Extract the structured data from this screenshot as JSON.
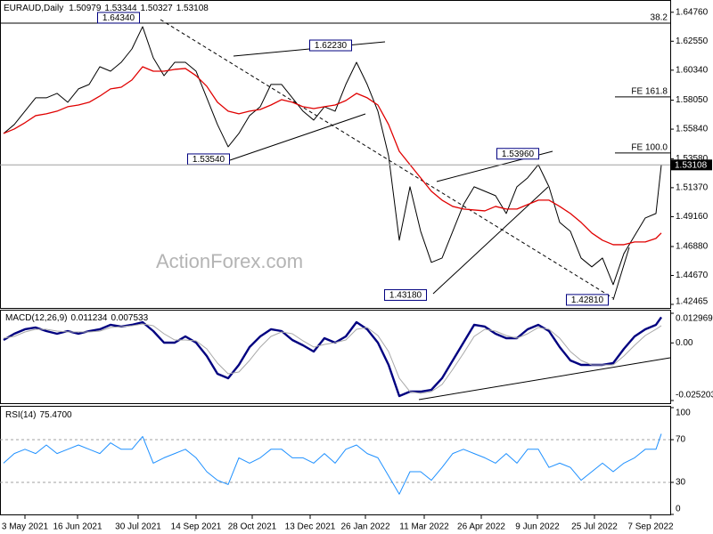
{
  "chart_data": [
    {
      "type": "line",
      "title": "EURAUD,Daily",
      "ohlc": [
        1.50979,
        1.53344,
        1.50327,
        1.53108
      ],
      "watermark": "ActionForex.com",
      "xlim": [
        -2,
        374
      ],
      "ylim": [
        1.4226,
        1.6556
      ],
      "yticks": [
        {
          "value": 1.6476,
          "label": "1.64760"
        },
        {
          "value": 1.6255,
          "label": "1.62550"
        },
        {
          "value": 1.6034,
          "label": "1.60340"
        },
        {
          "value": 1.5805,
          "label": "1.58050"
        },
        {
          "value": 1.5584,
          "label": "1.55840"
        },
        {
          "value": 1.5358,
          "label": "1.53580"
        },
        {
          "value": 1.5137,
          "label": "1.51370"
        },
        {
          "value": 1.4916,
          "label": "1.49160"
        },
        {
          "value": 1.4688,
          "label": "1.46880"
        },
        {
          "value": 1.4467,
          "label": "1.44670"
        },
        1.42465
      ],
      "x": [
        0,
        6,
        12,
        18,
        24,
        30,
        36,
        42,
        48,
        54,
        60,
        66,
        72,
        78,
        84,
        90,
        96,
        102,
        108,
        114,
        120,
        126,
        132,
        138,
        144,
        150,
        156,
        162,
        168,
        174,
        180,
        186,
        192,
        198,
        204,
        210,
        216,
        222,
        228,
        234,
        240,
        246,
        252,
        258,
        264,
        270,
        276,
        282,
        288,
        294,
        300,
        306,
        312,
        318,
        324,
        330,
        336,
        342,
        348,
        354,
        360,
        366,
        369
      ],
      "series": [
        {
          "color": "#000000",
          "width": 1,
          "values": [
            1.5551,
            1.5619,
            1.5721,
            1.5823,
            1.5823,
            1.5857,
            1.5789,
            1.5891,
            1.5925,
            1.606,
            1.6026,
            1.6094,
            1.6196,
            1.6366,
            1.6128,
            1.5992,
            1.6094,
            1.6094,
            1.6026,
            1.5823,
            1.5619,
            1.5449,
            1.5551,
            1.5687,
            1.5755,
            1.5925,
            1.5925,
            1.5823,
            1.5721,
            1.5653,
            1.5755,
            1.5721,
            1.5925,
            1.6094,
            1.5925,
            1.5721,
            1.5381,
            1.4736,
            1.5144,
            1.4804,
            1.4567,
            1.46,
            1.4804,
            1.5008,
            1.5144,
            1.511,
            1.5076,
            1.494,
            1.5144,
            1.5212,
            1.5313,
            1.5144,
            1.4872,
            1.4804,
            1.46,
            1.4533,
            1.46,
            1.4397,
            1.4634,
            1.477,
            1.4906,
            1.494,
            1.53108
          ]
        },
        {
          "color": "#e00000",
          "width": 1.3,
          "values": [
            1.5551,
            1.5585,
            1.5633,
            1.5687,
            1.5701,
            1.5721,
            1.5755,
            1.5768,
            1.5789,
            1.5836,
            1.5891,
            1.5904,
            1.5959,
            1.606,
            1.6026,
            1.6026,
            1.604,
            1.6047,
            1.5992,
            1.5911,
            1.5789,
            1.5721,
            1.5701,
            1.5721,
            1.5734,
            1.5768,
            1.5809,
            1.5789,
            1.5755,
            1.5741,
            1.5755,
            1.5768,
            1.5802,
            1.5857,
            1.5823,
            1.5768,
            1.5619,
            1.5415,
            1.5313,
            1.5212,
            1.511,
            1.5042,
            1.4994,
            1.4974,
            1.4967,
            1.496,
            1.4994,
            1.4974,
            1.4974,
            1.5008,
            1.5042,
            1.5042,
            1.4994,
            1.494,
            1.4872,
            1.4791,
            1.4736,
            1.4702,
            1.4702,
            1.4723,
            1.4723,
            1.475,
            1.4791
          ]
        }
      ],
      "annotations": [
        {
          "x": 64.5,
          "value": 1.6434,
          "label": "1.64340"
        },
        {
          "x": 183.5,
          "value": 1.6223,
          "label": "1.62230"
        },
        {
          "x": 115,
          "value": 1.5354,
          "label": "1.53540"
        },
        {
          "x": 288.5,
          "value": 1.5396,
          "label": "1.53960"
        },
        {
          "x": 225.5,
          "value": 1.4318,
          "label": "1.43180"
        },
        {
          "x": 327.5,
          "value": 1.4281,
          "label": "1.42810"
        }
      ],
      "levels": [
        {
          "x0": -2,
          "value": 1.6393,
          "label": "38.2"
        },
        {
          "x0": 343,
          "value": 1.583,
          "label": "FE 161.8"
        },
        {
          "x0": 343,
          "value": 1.5402,
          "label": "FE 100.0"
        }
      ]
    },
    {
      "type": "line",
      "title": "MACD(12,26,9)",
      "xlim": [
        -2,
        374
      ],
      "ylim": [
        -0.025203,
        0.012969
      ],
      "yticks": [
        0.012969,
        {
          "value": 0,
          "label": "0.00"
        },
        -0.025203
      ],
      "x": [
        0,
        6,
        12,
        18,
        24,
        30,
        36,
        42,
        48,
        54,
        60,
        66,
        72,
        78,
        84,
        90,
        96,
        102,
        108,
        114,
        120,
        126,
        132,
        138,
        144,
        150,
        156,
        162,
        168,
        174,
        180,
        186,
        192,
        198,
        204,
        210,
        216,
        222,
        228,
        234,
        240,
        246,
        252,
        258,
        264,
        270,
        276,
        282,
        288,
        294,
        300,
        306,
        312,
        318,
        324,
        330,
        336,
        342,
        348,
        354,
        360,
        366,
        369
      ],
      "series": [
        {
          "color": "#000080",
          "width": 2.4,
          "values": [
            0.00128,
            0.00401,
            0.00596,
            0.00674,
            0.00518,
            0.00401,
            0.00518,
            0.00401,
            0.00518,
            0.00596,
            0.00791,
            0.00713,
            0.00791,
            0.00907,
            0.00518,
            0.00012,
            0.00012,
            0.00284,
            0.00012,
            -0.00573,
            -0.01352,
            -0.01546,
            -0.00962,
            -0.00183,
            0.00284,
            0.00596,
            0.00518,
            0.00128,
            -0.00105,
            -0.00378,
            0.00206,
            0.00012,
            0.00284,
            0.00907,
            0.00596,
            0.00012,
            -0.00962,
            -0.02325,
            -0.02131,
            -0.02131,
            -0.02053,
            -0.01546,
            -0.00767,
            0.00012,
            0.00791,
            0.00713,
            0.00401,
            0.00206,
            0.00206,
            0.00596,
            0.00791,
            0.00518,
            -0.00183,
            -0.00767,
            -0.00962,
            -0.00962,
            -0.00962,
            -0.00884,
            -0.00261,
            0.00284,
            0.00596,
            0.00791,
            0.011234
          ]
        },
        {
          "color": "#a8a8a8",
          "width": 1,
          "values": [
            0.00206,
            0.00284,
            0.00479,
            0.00596,
            0.00596,
            0.00518,
            0.00479,
            0.00479,
            0.00479,
            0.00518,
            0.00674,
            0.00713,
            0.00752,
            0.0083,
            0.00752,
            0.00401,
            0.00128,
            0.00128,
            0.0009,
            -0.00261,
            -0.00884,
            -0.01352,
            -0.01274,
            -0.00767,
            -0.00183,
            0.00284,
            0.00479,
            0.00401,
            0.0009,
            -0.00183,
            -0.00066,
            0.00012,
            0.00128,
            0.00596,
            0.00674,
            0.00323,
            -0.00378,
            -0.01546,
            -0.02131,
            -0.02209,
            -0.02131,
            -0.01819,
            -0.01157,
            -0.00456,
            0.00284,
            0.00596,
            0.00518,
            0.00323,
            0.00206,
            0.00401,
            0.00674,
            0.00596,
            0.00206,
            -0.00378,
            -0.00767,
            -0.00962,
            -0.00962,
            -0.00962,
            -0.00573,
            -0.00105,
            0.00323,
            0.00596,
            0.007533
          ]
        }
      ]
    },
    {
      "type": "line",
      "title": "RSI(14)",
      "current_label": "75.4700",
      "xlim": [
        -2,
        374
      ],
      "ylim": [
        0,
        100
      ],
      "yticks": [
        100,
        70,
        30,
        0
      ],
      "xticks": [
        {
          "value": 12,
          "label": "3 May 2021"
        },
        {
          "value": 41.5,
          "label": "16 Jun 2021"
        },
        {
          "value": 75.5,
          "label": "30 Jul 2021"
        },
        {
          "value": 108,
          "label": "14 Sep 2021"
        },
        {
          "value": 139.5,
          "label": "28 Oct 2021"
        },
        {
          "value": 172,
          "label": "13 Dec 2021"
        },
        {
          "value": 203,
          "label": "26 Jan 2022"
        },
        {
          "value": 236,
          "label": "11 Mar 2022"
        },
        {
          "value": 268,
          "label": "26 Apr 2022"
        },
        {
          "value": 299.5,
          "label": "9 Jun 2022"
        },
        {
          "value": 331.5,
          "label": "25 Jul 2022"
        },
        {
          "value": 363,
          "label": "7 Sep 2022"
        }
      ],
      "x": [
        0,
        6,
        12,
        18,
        24,
        30,
        36,
        42,
        48,
        54,
        60,
        66,
        72,
        78,
        84,
        90,
        96,
        102,
        108,
        114,
        120,
        126,
        132,
        138,
        144,
        150,
        156,
        162,
        168,
        174,
        180,
        186,
        192,
        198,
        204,
        210,
        216,
        222,
        228,
        234,
        240,
        246,
        252,
        258,
        264,
        270,
        276,
        282,
        288,
        294,
        300,
        306,
        312,
        318,
        324,
        330,
        336,
        342,
        348,
        354,
        360,
        366,
        369
      ],
      "series": [
        {
          "color": "#1e90ff",
          "width": 1,
          "values": [
            48,
            57,
            61,
            57,
            65,
            57,
            61,
            65,
            61,
            57,
            67,
            61,
            61,
            73,
            48,
            53,
            57,
            61,
            53,
            40,
            32,
            28,
            53,
            48,
            53,
            61,
            61,
            53,
            53,
            48,
            57,
            48,
            61,
            65,
            57,
            53,
            36,
            19,
            40,
            40,
            32,
            44,
            57,
            61,
            57,
            53,
            48,
            57,
            48,
            61,
            61,
            44,
            48,
            44,
            32,
            40,
            48,
            40,
            48,
            53,
            61,
            61,
            75.47
          ]
        }
      ]
    }
  ]
}
